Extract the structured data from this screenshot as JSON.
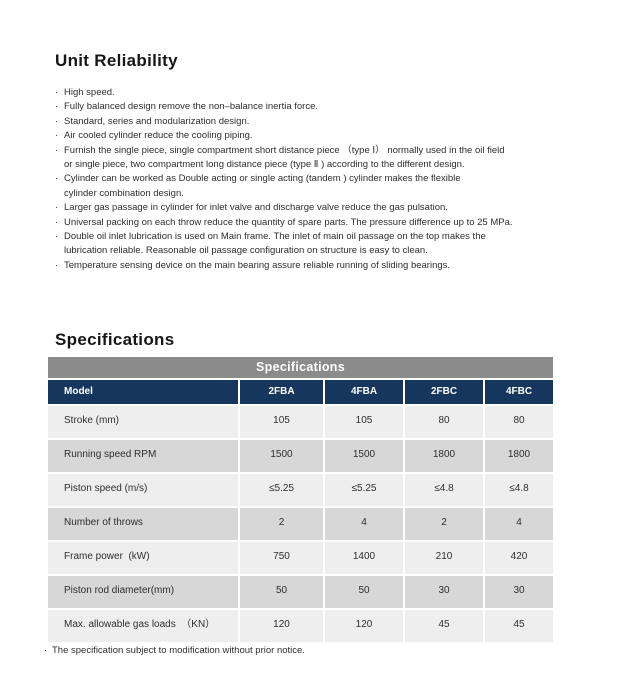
{
  "colors": {
    "header_navy": "#16365e",
    "title_bar_gray": "#8b8b8b",
    "row_light": "#eeeeee",
    "row_dark": "#d7d7d7",
    "text": "#2e2e2e"
  },
  "unit_reliability": {
    "title": "Unit Reliability",
    "bullet_char": "·",
    "bullets": [
      "High speed.",
      "Fully balanced design remove the non–balance inertia force.",
      "Standard, series and modularization design.",
      "Air cooled cylinder reduce the cooling piping.",
      "Furnish the single piece, single compartment short distance piece （type Ⅰ） normally used in the oil field\nor single piece, two compartment long distance piece (type Ⅱ ) according to the different design.",
      "Cylinder can be worked as Double acting or single acting (tandem ) cylinder makes the flexible\ncylinder combination design.",
      "Larger gas passage in cylinder for inlet valve and discharge valve reduce the gas pulsation.",
      "Universal packing on each throw reduce the quantity of spare parts. The pressure difference up to 25 MPa.",
      "Double oil inlet lubrication is used on Main frame. The inlet of main oil passage on the top makes the\nlubrication reliable. Reasonable oil passage configuration on structure is easy to clean.",
      "Temperature sensing device on the main bearing assure reliable running of sliding bearings."
    ]
  },
  "specifications": {
    "title": "Specifications",
    "table_title": "Specifications",
    "columns": [
      "Model",
      "2FBA",
      "4FBA",
      "2FBC",
      "4FBC"
    ],
    "rows": [
      {
        "label": "Stroke (mm)",
        "values": [
          "105",
          "105",
          "80",
          "80"
        ]
      },
      {
        "label": "Running speed RPM",
        "values": [
          "1500",
          "1500",
          "1800",
          "1800"
        ]
      },
      {
        "label": "Piston speed (m/s)",
        "values": [
          "≤5.25",
          "≤5.25",
          "≤4.8",
          "≤4.8"
        ]
      },
      {
        "label": "Number of throws",
        "values": [
          "2",
          "4",
          "2",
          "4"
        ]
      },
      {
        "label": "Frame power  (kW)",
        "values": [
          "750",
          "1400",
          "210",
          "420"
        ]
      },
      {
        "label": "Piston rod diameter(mm)",
        "values": [
          "50",
          "50",
          "30",
          "30"
        ]
      },
      {
        "label": "Max. allowable gas loads  （KN）",
        "values": [
          "120",
          "120",
          "45",
          "45"
        ]
      }
    ],
    "footnote": "The specification subject to modification without prior notice."
  }
}
